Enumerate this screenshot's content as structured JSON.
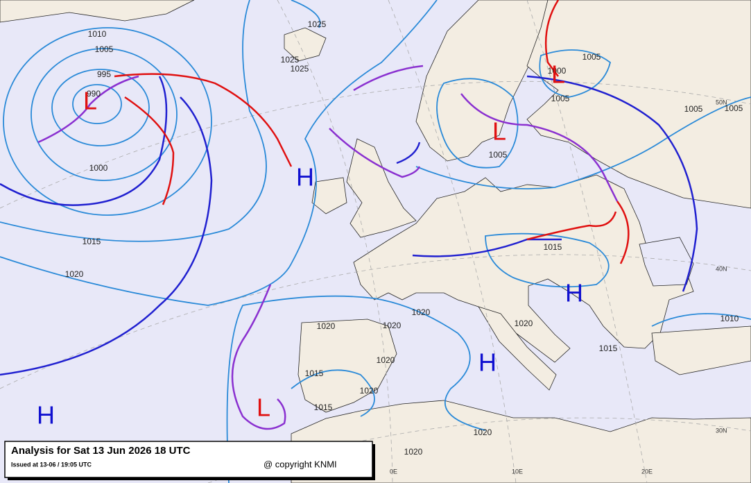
{
  "title": "Analysis for Sat 13 Jun 2026 18 UTC",
  "issued": "Issued at 13-06 / 19:05 UTC",
  "copyright": "@ copyright KNMI",
  "pressure_centers": [
    "L",
    "L",
    "L",
    "L",
    "H",
    "H",
    "H",
    "H"
  ],
  "isobar_labels": [
    "1010",
    "1005",
    "995",
    "990",
    "1000",
    "1015",
    "1020",
    "1025",
    "1025",
    "1025",
    "1005",
    "1000",
    "1005",
    "1005",
    "1005",
    "1005",
    "1015",
    "1010",
    "1020",
    "1020",
    "1020",
    "1020",
    "1020",
    "1015",
    "1020",
    "1015",
    "1020",
    "1020",
    "1015"
  ],
  "graticule_labels": [
    "50N",
    "40N",
    "30N",
    "0E",
    "10E",
    "20E"
  ]
}
